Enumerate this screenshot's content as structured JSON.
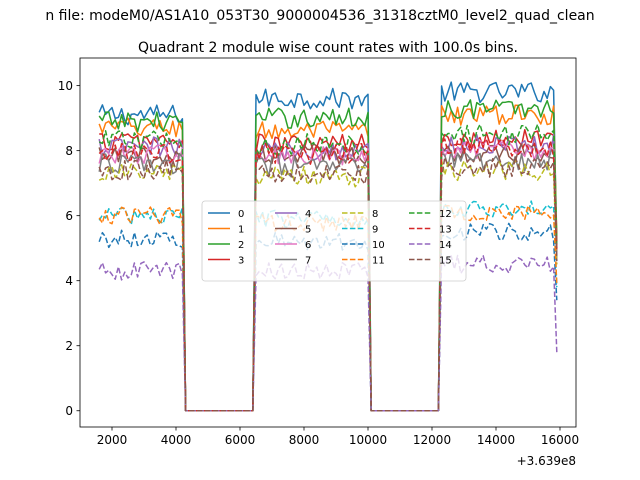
{
  "chart_data": {
    "type": "line",
    "suptitle": "n file: modeM0/AS1A10_053T30_9000004536_31318cztM0_level2_quad_clean",
    "title": "Quadrant 2 module wise count rates with 100.0s bins.",
    "xlabel": "",
    "ylabel": "",
    "offset_text": "+3.639e8",
    "xlim": [
      1000,
      16500
    ],
    "ylim": [
      -0.5,
      10.85
    ],
    "xticks": [
      2000,
      4000,
      6000,
      8000,
      10000,
      12000,
      14000,
      16000
    ],
    "xtick_labels": [
      "2000",
      "4000",
      "6000",
      "8000",
      "10000",
      "12000",
      "14000",
      "16000"
    ],
    "yticks": [
      0,
      2,
      4,
      6,
      8,
      10
    ],
    "ytick_labels": [
      "0",
      "2",
      "4",
      "6",
      "8",
      "10"
    ],
    "grid": false,
    "legend": {
      "placement": "center",
      "columns": 4
    },
    "bin_seconds": 100,
    "x": {
      "start": 1600,
      "step": 100,
      "end": 15900
    },
    "segments": [
      {
        "start": 1600,
        "end": 4200
      },
      {
        "start": 6500,
        "end": 10000
      },
      {
        "start": 12300,
        "end": 15800
      }
    ],
    "series": [
      {
        "name": "0",
        "color": "#1f77b4",
        "dash": "solid",
        "levels": [
          9.1,
          9.6,
          9.8
        ],
        "drop_end": 5.1
      },
      {
        "name": "1",
        "color": "#ff7f0e",
        "dash": "solid",
        "levels": [
          8.7,
          8.6,
          9.1
        ],
        "drop_end": 5.3
      },
      {
        "name": "2",
        "color": "#2ca02c",
        "dash": "solid",
        "levels": [
          8.9,
          9.0,
          9.3
        ],
        "drop_end": 5.2
      },
      {
        "name": "3",
        "color": "#d62728",
        "dash": "solid",
        "levels": [
          8.3,
          8.2,
          8.4
        ],
        "drop_end": 5.0
      },
      {
        "name": "4",
        "color": "#9467bd",
        "dash": "solid",
        "levels": [
          8.1,
          8.0,
          8.2
        ],
        "drop_end": 4.9
      },
      {
        "name": "5",
        "color": "#8c564b",
        "dash": "solid",
        "levels": [
          7.8,
          7.9,
          7.9
        ],
        "drop_end": 4.8
      },
      {
        "name": "6",
        "color": "#e377c2",
        "dash": "solid",
        "levels": [
          7.9,
          7.8,
          8.0
        ],
        "drop_end": 4.8
      },
      {
        "name": "7",
        "color": "#7f7f7f",
        "dash": "solid",
        "levels": [
          7.6,
          7.5,
          7.7
        ],
        "drop_end": 4.7
      },
      {
        "name": "8",
        "color": "#bcbd22",
        "dash": "dashed",
        "levels": [
          7.3,
          7.2,
          7.4
        ],
        "drop_end": 4.5
      },
      {
        "name": "9",
        "color": "#17becf",
        "dash": "dashed",
        "levels": [
          6.0,
          5.9,
          6.2
        ],
        "drop_end": 3.8
      },
      {
        "name": "10",
        "color": "#1f77b4",
        "dash": "dashed",
        "levels": [
          5.3,
          5.2,
          5.5
        ],
        "drop_end": 3.4
      },
      {
        "name": "11",
        "color": "#ff7f0e",
        "dash": "dashed",
        "levels": [
          6.0,
          5.8,
          6.1
        ],
        "drop_end": 3.9
      },
      {
        "name": "12",
        "color": "#2ca02c",
        "dash": "dashed",
        "levels": [
          8.3,
          8.2,
          8.5
        ],
        "drop_end": 5.0
      },
      {
        "name": "13",
        "color": "#d62728",
        "dash": "dashed",
        "levels": [
          7.9,
          7.9,
          8.1
        ],
        "drop_end": 4.9
      },
      {
        "name": "14",
        "color": "#9467bd",
        "dash": "dashed",
        "levels": [
          4.3,
          4.3,
          4.5
        ],
        "drop_end": 1.8
      },
      {
        "name": "15",
        "color": "#8c564b",
        "dash": "dashed",
        "levels": [
          7.4,
          7.3,
          7.5
        ],
        "drop_end": 4.6
      }
    ]
  }
}
